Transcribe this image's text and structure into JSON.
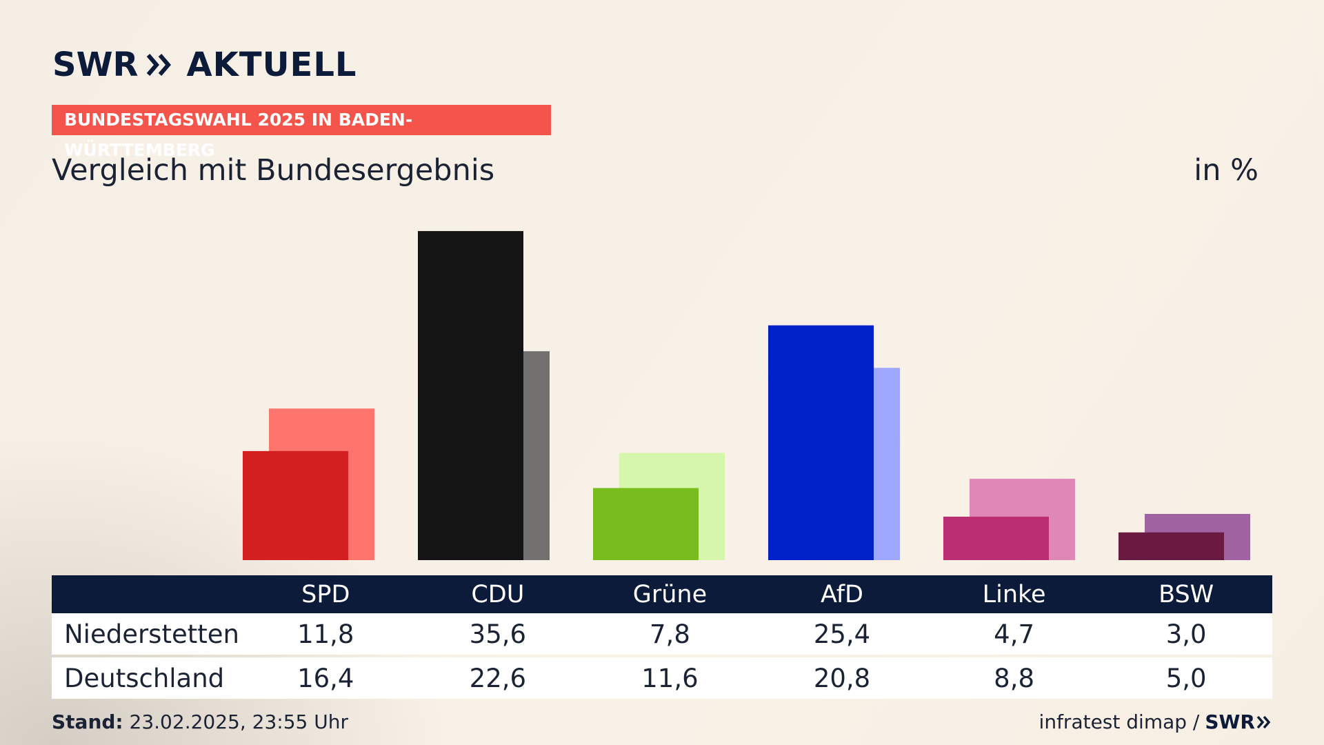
{
  "brand": {
    "logo_left": "SWR",
    "logo_right": "AKTUELL",
    "logo_small": "SWR"
  },
  "banner": "BUNDESTAGSWAHL 2025 IN BADEN-WÜRTTEMBERG",
  "subtitle": "Vergleich mit Bundesergebnis",
  "unit": "in %",
  "table": {
    "columns": [
      "SPD",
      "CDU",
      "Grüne",
      "AfD",
      "Linke",
      "BSW"
    ],
    "rows": [
      {
        "label": "Niederstetten",
        "values": [
          "11,8",
          "35,6",
          "7,8",
          "25,4",
          "4,7",
          "3,0"
        ]
      },
      {
        "label": "Deutschland",
        "values": [
          "16,4",
          "22,6",
          "11,6",
          "20,8",
          "8,8",
          "5,0"
        ]
      }
    ]
  },
  "footer": {
    "stand_label": "Stand:",
    "stand_value": "23.02.2025, 23:55 Uhr",
    "source": "infratest dimap /"
  },
  "chart_data": {
    "type": "bar",
    "categories": [
      "SPD",
      "CDU",
      "Grüne",
      "AfD",
      "Linke",
      "BSW"
    ],
    "series": [
      {
        "name": "Niederstetten",
        "values": [
          11.8,
          35.6,
          7.8,
          25.4,
          4.7,
          3.0
        ],
        "colors": [
          "#d42020",
          "#141414",
          "#78bc1e",
          "#0020c8",
          "#bb2e72",
          "#6a1a40"
        ]
      },
      {
        "name": "Deutschland",
        "values": [
          16.4,
          22.6,
          11.6,
          20.8,
          8.8,
          5.0
        ],
        "colors": [
          "#ff756d",
          "#727170",
          "#d6f6ac",
          "#9fa8ff",
          "#df88b8",
          "#9e63a0"
        ]
      }
    ],
    "ylim": [
      0,
      36
    ],
    "title": "Vergleich mit Bundesergebnis",
    "unit": "in %",
    "grid": false,
    "legend": "none"
  }
}
